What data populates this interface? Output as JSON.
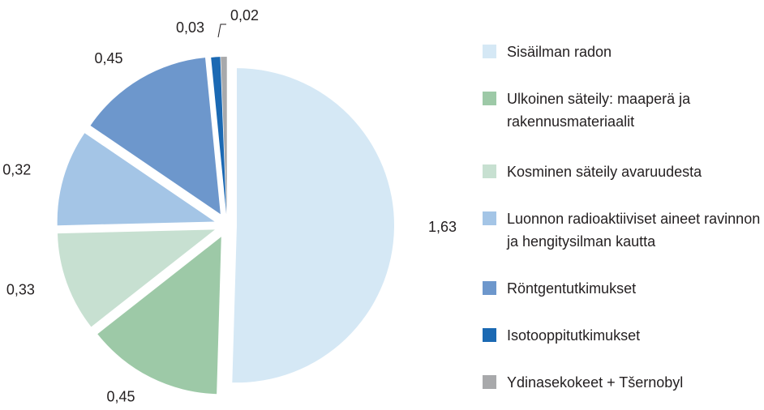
{
  "chart_data": {
    "type": "pie",
    "categories": [
      "Sisäilman radon",
      "Ulkoinen säteily: maaperä ja rakennusmateriaalit",
      "Kosminen säteily avaruudesta",
      "Luonnon radioaktiiviset aineet ravinnon ja hengitysilman kautta",
      "Röntgentutkimukset",
      "Isotooppitutkimukset",
      "Ydinasekokeet + Tšernobyl"
    ],
    "values": [
      1.63,
      0.45,
      0.33,
      0.32,
      0.45,
      0.03,
      0.02
    ],
    "value_labels": [
      "1,63",
      "0,45",
      "0,33",
      "0,32",
      "0,45",
      "0,03",
      "0,02"
    ],
    "colors": [
      "#d5e8f5",
      "#9dc9a7",
      "#c7e0d1",
      "#a4c5e6",
      "#6d97cc",
      "#1b69b3",
      "#a8a9ab"
    ],
    "legend": "right"
  }
}
